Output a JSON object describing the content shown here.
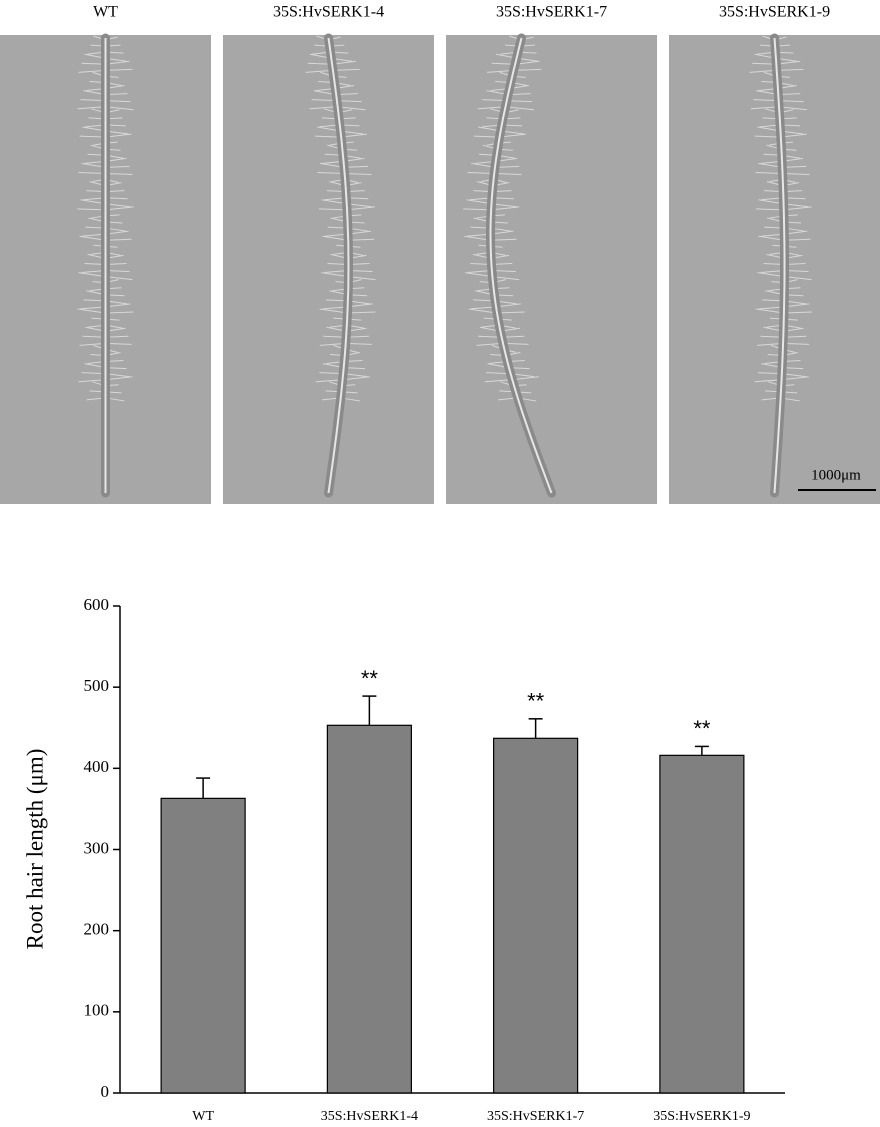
{
  "panels": {
    "labels": [
      "WT",
      "35S:HvSERK1-4",
      "35S:HvSERK1-7",
      "35S:HvSERK1-9"
    ],
    "scale_bar": "1000μm"
  },
  "chart_data": {
    "type": "bar",
    "y_label": "Root hair length (μm)",
    "categories": [
      "WT",
      "35S:HvSERK1-4",
      "35S:HvSERK1-7",
      "35S:HvSERK1-9"
    ],
    "values": [
      363,
      453,
      437,
      416
    ],
    "errors": [
      25,
      36,
      24,
      11
    ],
    "significance": [
      null,
      "**",
      "**",
      "**"
    ],
    "color": "#808080",
    "ylim": [
      0,
      600
    ],
    "yticks": [
      0,
      100,
      200,
      300,
      400,
      500,
      600
    ]
  }
}
